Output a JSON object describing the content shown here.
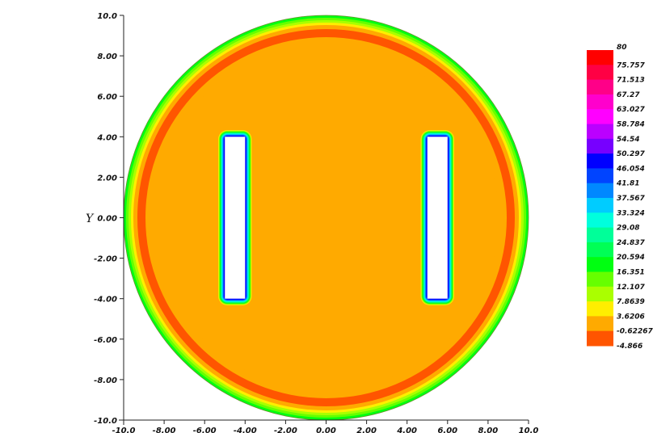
{
  "chart_data": {
    "type": "heatmap",
    "title": "",
    "xlabel": "",
    "ylabel": "Y",
    "xlim": [
      -10,
      10
    ],
    "ylim": [
      -10,
      10
    ],
    "x_ticks": [
      "-10.0",
      "-8.00",
      "-6.00",
      "-4.00",
      "-2.00",
      "0.00",
      "2.00",
      "4.00",
      "6.00",
      "8.00",
      "10.0"
    ],
    "y_ticks": [
      "-10.0",
      "-8.00",
      "-6.00",
      "-4.00",
      "-2.00",
      "0.00",
      "2.00",
      "4.00",
      "6.00",
      "8.00",
      "10.0"
    ],
    "grid": false,
    "domain": {
      "shape": "circle",
      "center": [
        0,
        0
      ],
      "radius": 10
    },
    "holes": [
      {
        "x_range": [
          -5,
          -4
        ],
        "y_range": [
          -4,
          4
        ]
      },
      {
        "x_range": [
          5,
          6
        ],
        "y_range": [
          -4,
          4
        ]
      }
    ],
    "field_description": {
      "interior_value": 3.6206,
      "boundary_ring_values_outward": [
        -0.62267,
        3.6206,
        7.8639,
        12.107,
        16.351,
        20.594
      ],
      "hole_edge_values_inward": [
        3.6206,
        7.8639,
        12.107,
        16.351,
        20.594,
        24.837,
        29.08,
        33.324,
        37.567,
        41.81,
        46.054,
        50.297
      ]
    },
    "colorbar": {
      "levels": [
        "80",
        "75.757",
        "71.513",
        "67.27",
        "63.027",
        "58.784",
        "54.54",
        "50.297",
        "46.054",
        "41.81",
        "37.567",
        "33.324",
        "29.08",
        "24.837",
        "20.594",
        "16.351",
        "12.107",
        "7.8639",
        "3.6206",
        "-0.62267",
        "-4.866"
      ],
      "colors": [
        "#ff0000",
        "#ff0044",
        "#ff0088",
        "#ff00cc",
        "#ff00ff",
        "#bb00ff",
        "#7700ff",
        "#0000ff",
        "#0044ff",
        "#0088ff",
        "#00ccff",
        "#00ffdd",
        "#00ff99",
        "#00ff55",
        "#00ff11",
        "#66ff00",
        "#aaff00",
        "#ffee00",
        "#ffaa00",
        "#ff5500",
        "#ff0000"
      ]
    }
  }
}
